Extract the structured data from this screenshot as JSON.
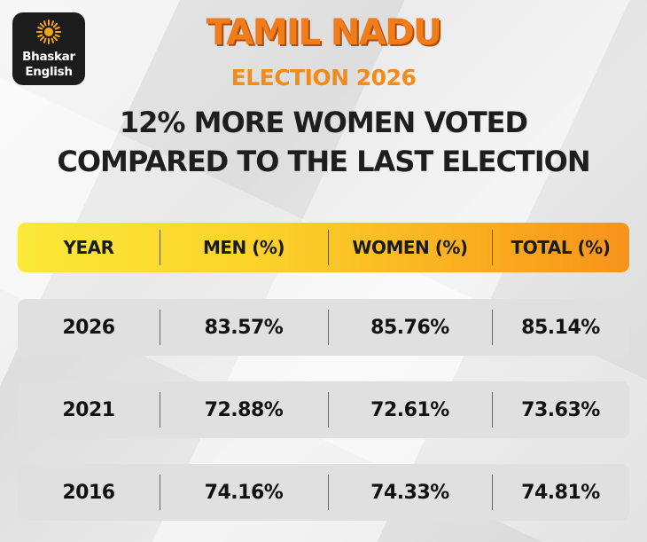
{
  "logo": {
    "line1": "Bhaskar",
    "line2": "English",
    "icon": "sun-icon"
  },
  "brand": {
    "title": "TAMIL NADU",
    "subtitle": "ELECTION 2026"
  },
  "headline": "12% MORE WOMEN VOTED COMPARED TO THE LAST ELECTION",
  "colors": {
    "header_start": "#fce93a",
    "header_end": "#f7931b",
    "brand_orange": "#f07d1a",
    "row_bg": "#e0e0e0"
  },
  "chart_data": {
    "type": "table",
    "title": "12% MORE WOMEN VOTED COMPARED TO THE LAST ELECTION",
    "columns": [
      "YEAR",
      "MEN (%)",
      "WOMEN (%)",
      "TOTAL (%)"
    ],
    "rows": [
      [
        "2026",
        "83.57%",
        "85.76%",
        "85.14%"
      ],
      [
        "2021",
        "72.88%",
        "72.61%",
        "73.63%"
      ],
      [
        "2016",
        "74.16%",
        "74.33%",
        "74.81%"
      ]
    ]
  }
}
